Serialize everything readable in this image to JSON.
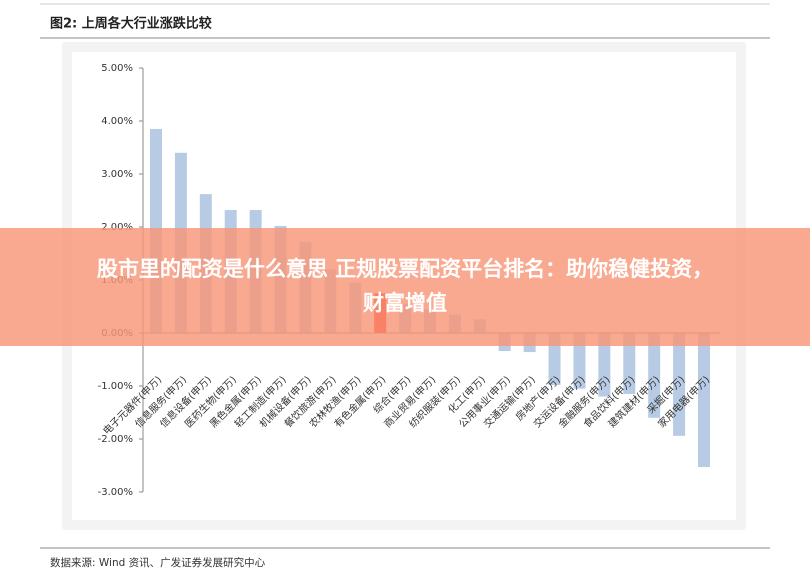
{
  "header": {
    "title": "图2: 上周各大行业涨跌比较"
  },
  "chart_data": {
    "type": "bar",
    "categories": [
      "电子元器件(申万)",
      "信息服务(申万)",
      "信息设备(申万)",
      "医药生物(申万)",
      "黑色金属(申万)",
      "轻工制造(申万)",
      "机械设备(申万)",
      "餐饮旅游(申万)",
      "农林牧渔(申万)",
      "有色金属(申万)",
      "综合(申万)",
      "商业贸易(申万)",
      "纺织服装(申万)",
      "化工(申万)",
      "公用事业(申万)",
      "交通运输(申万)",
      "房地产(申万)",
      "交运设备(申万)",
      "金融服务(申万)",
      "食品饮料(申万)",
      "建筑建材(申万)",
      "采掘(申万)",
      "家用电器(申万)"
    ],
    "values": [
      3.85,
      3.4,
      2.62,
      2.32,
      2.32,
      2.02,
      1.72,
      1.2,
      0.95,
      0.75,
      0.55,
      0.45,
      0.35,
      0.26,
      -0.34,
      -0.36,
      -0.98,
      -1.05,
      -1.2,
      -1.15,
      -1.6,
      -1.94,
      -2.53
    ],
    "colors": [
      "#b7cbe5",
      "#b7cbe5",
      "#b7cbe5",
      "#b7cbe5",
      "#b7cbe5",
      "#b7cbe5",
      "#b7cbe5",
      "#b7cbe5",
      "#b7cbe5",
      "#ff2a1a",
      "#b7cbe5",
      "#b7cbe5",
      "#b7cbe5",
      "#b7cbe5",
      "#b7cbe5",
      "#b7cbe5",
      "#b7cbe5",
      "#b7cbe5",
      "#b7cbe5",
      "#b7cbe5",
      "#b7cbe5",
      "#b7cbe5",
      "#b7cbe5"
    ],
    "ylim": [
      -3,
      5
    ],
    "yticks": [
      {
        "value": -3,
        "label": "-3.00%"
      },
      {
        "value": -2,
        "label": "-2.00%"
      },
      {
        "value": -1,
        "label": "-1.00%"
      },
      {
        "value": 0,
        "label": "0.00%"
      },
      {
        "value": 1,
        "label": "1.00%"
      },
      {
        "value": 2,
        "label": "2.00%"
      },
      {
        "value": 3,
        "label": "3.00%"
      },
      {
        "value": 4,
        "label": "4.00%"
      },
      {
        "value": 5,
        "label": "5.00%"
      }
    ]
  },
  "source": "数据来源: Wind 资讯、广发证券发展研究中心",
  "banner": {
    "line1": "股市里的配资是什么意思 正规股票配资平台排名：助你稳健投资，",
    "line2": "财富增值"
  }
}
